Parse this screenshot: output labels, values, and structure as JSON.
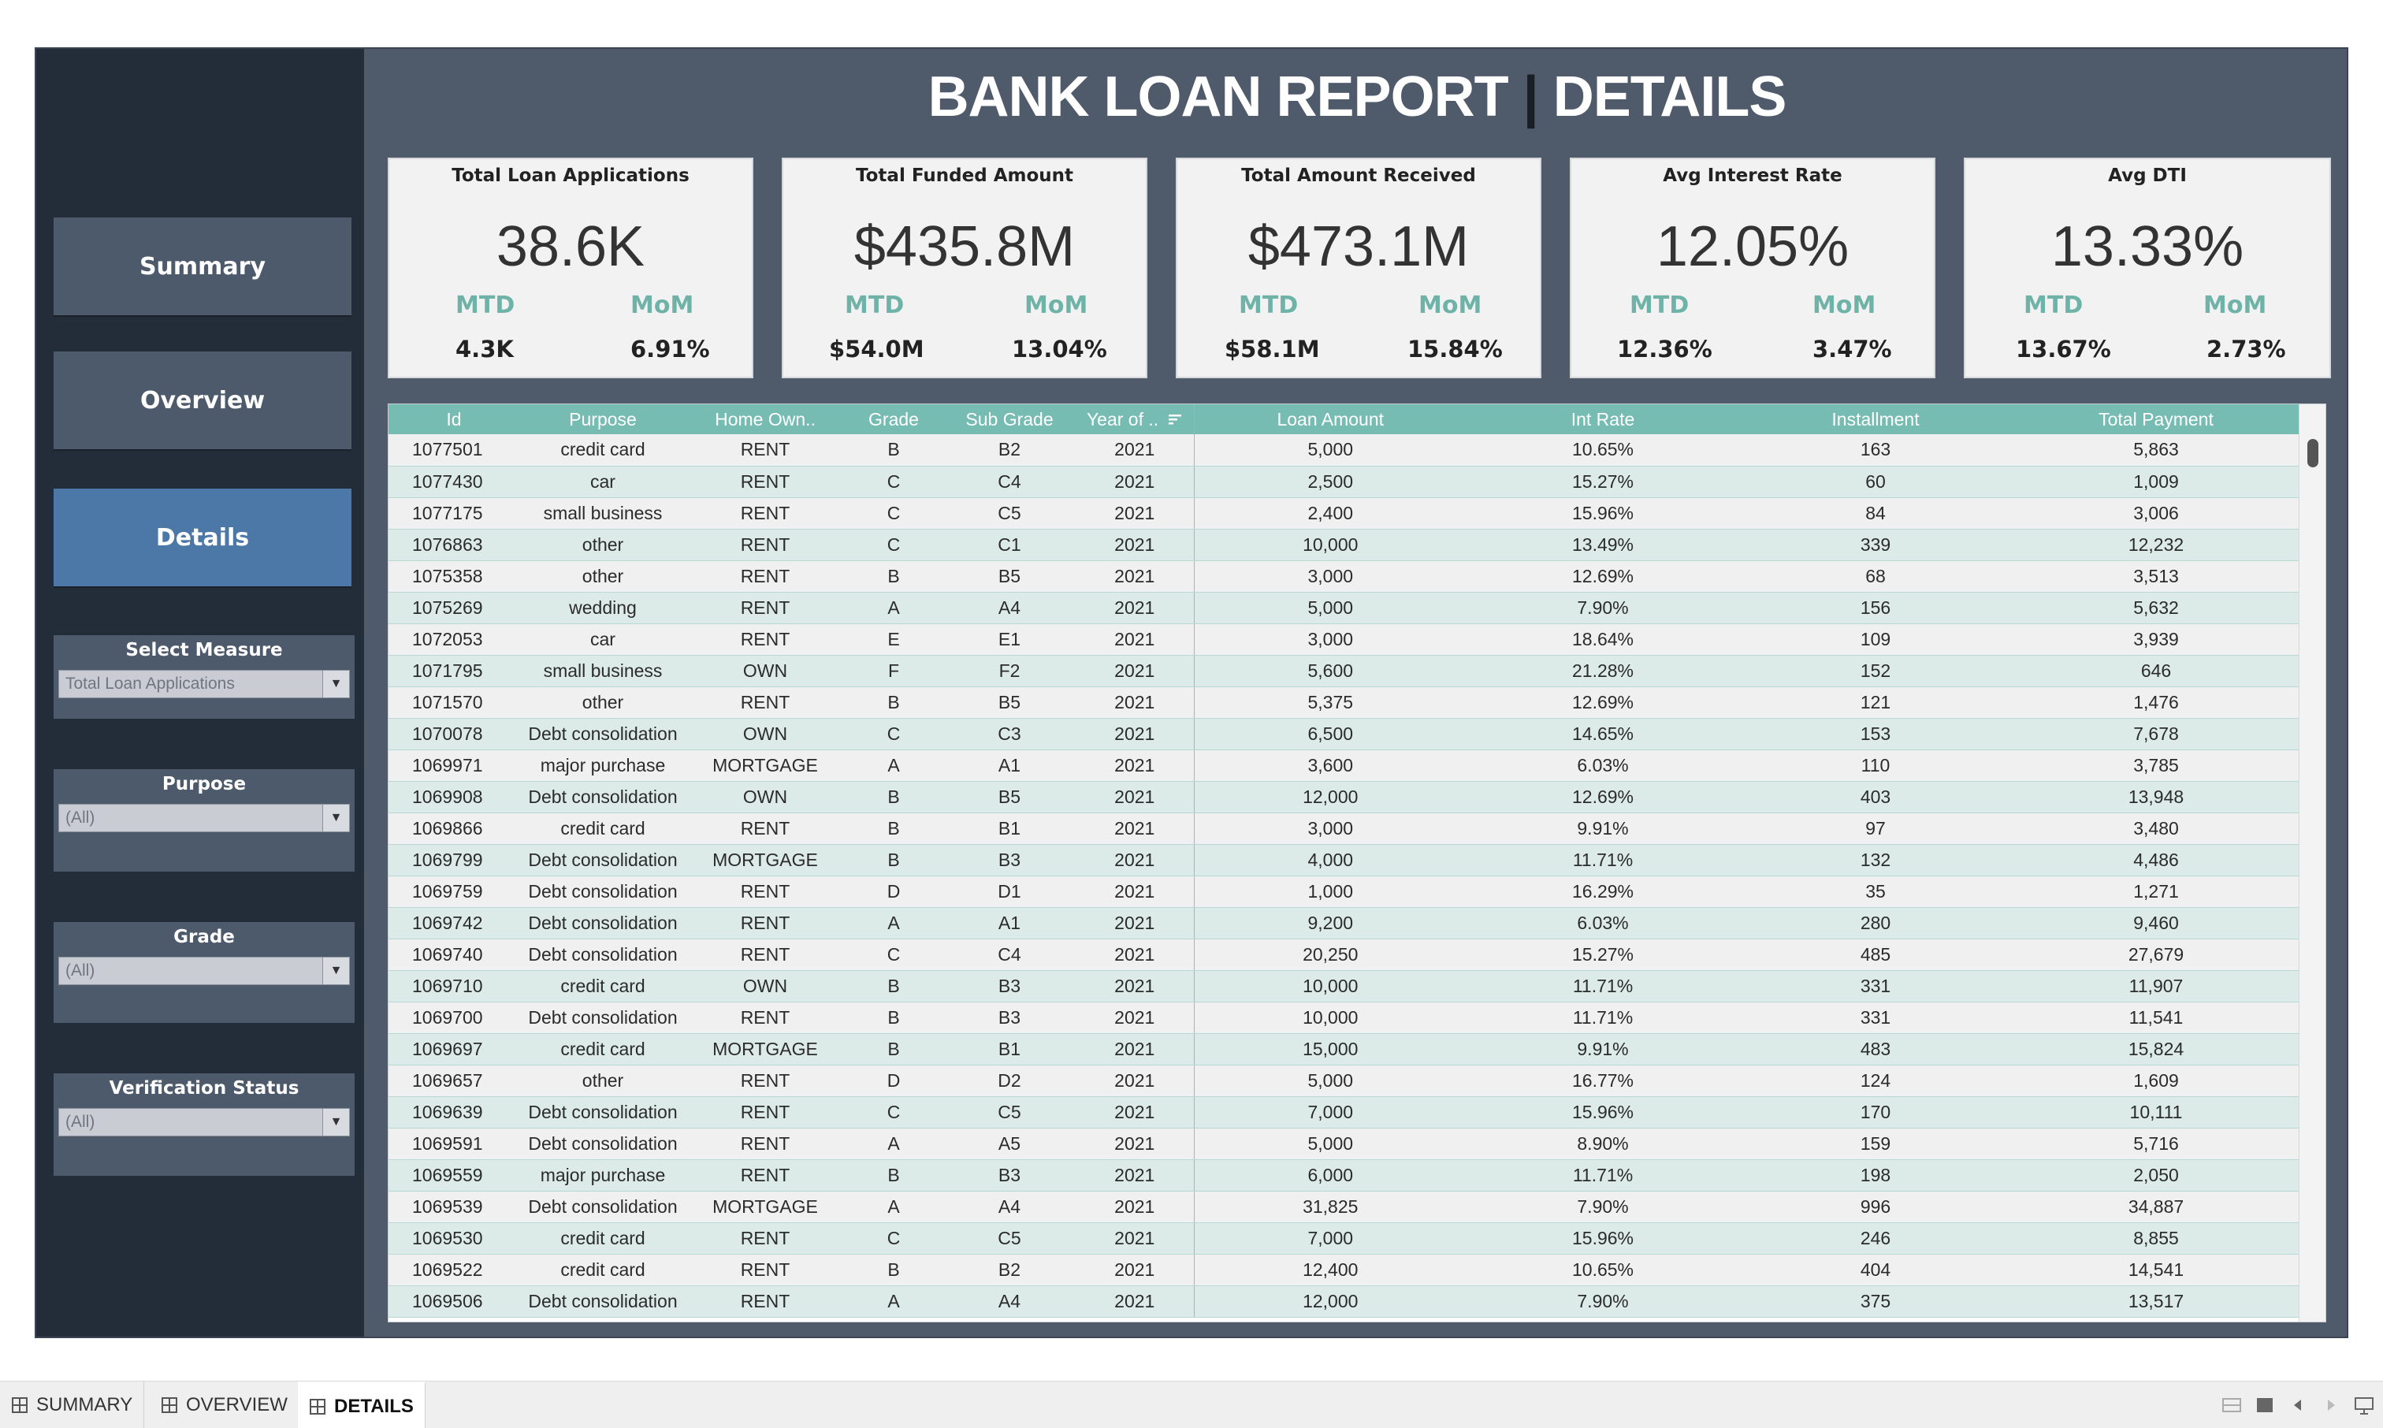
{
  "report": {
    "title_left": "BANK LOAN REPORT",
    "title_separator": "|",
    "title_right": "DETAILS"
  },
  "nav": {
    "summary": "Summary",
    "overview": "Overview",
    "details": "Details",
    "active": "details"
  },
  "filters": {
    "measure": {
      "label": "Select Measure",
      "value": "Total Loan Applications"
    },
    "purpose": {
      "label": "Purpose",
      "value": "(All)"
    },
    "grade": {
      "label": "Grade",
      "value": "(All)"
    },
    "verification": {
      "label": "Verification Status",
      "value": "(All)"
    }
  },
  "kpis": [
    {
      "label": "Total Loan Applications",
      "value": "38.6K",
      "mtd_label": "MTD",
      "mom_label": "MoM",
      "mtd": "4.3K",
      "mom": "6.91%"
    },
    {
      "label": "Total Funded Amount",
      "value": "$435.8M",
      "mtd_label": "MTD",
      "mom_label": "MoM",
      "mtd": "$54.0M",
      "mom": "13.04%"
    },
    {
      "label": "Total Amount Received",
      "value": "$473.1M",
      "mtd_label": "MTD",
      "mom_label": "MoM",
      "mtd": "$58.1M",
      "mom": "15.84%"
    },
    {
      "label": "Avg Interest Rate",
      "value": "12.05%",
      "mtd_label": "MTD",
      "mom_label": "MoM",
      "mtd": "12.36%",
      "mom": "3.47%"
    },
    {
      "label": "Avg DTI",
      "value": "13.33%",
      "mtd_label": "MTD",
      "mom_label": "MoM",
      "mtd": "13.67%",
      "mom": "2.73%"
    }
  ],
  "table": {
    "columns": [
      "Id",
      "Purpose",
      "Home Own..",
      "Grade",
      "Sub Grade",
      "Year of ..",
      "Loan Amount",
      "Int Rate",
      "Installment",
      "Total Payment"
    ],
    "rows": [
      [
        "1077501",
        "credit card",
        "RENT",
        "B",
        "B2",
        "2021",
        "5,000",
        "10.65%",
        "163",
        "5,863"
      ],
      [
        "1077430",
        "car",
        "RENT",
        "C",
        "C4",
        "2021",
        "2,500",
        "15.27%",
        "60",
        "1,009"
      ],
      [
        "1077175",
        "small business",
        "RENT",
        "C",
        "C5",
        "2021",
        "2,400",
        "15.96%",
        "84",
        "3,006"
      ],
      [
        "1076863",
        "other",
        "RENT",
        "C",
        "C1",
        "2021",
        "10,000",
        "13.49%",
        "339",
        "12,232"
      ],
      [
        "1075358",
        "other",
        "RENT",
        "B",
        "B5",
        "2021",
        "3,000",
        "12.69%",
        "68",
        "3,513"
      ],
      [
        "1075269",
        "wedding",
        "RENT",
        "A",
        "A4",
        "2021",
        "5,000",
        "7.90%",
        "156",
        "5,632"
      ],
      [
        "1072053",
        "car",
        "RENT",
        "E",
        "E1",
        "2021",
        "3,000",
        "18.64%",
        "109",
        "3,939"
      ],
      [
        "1071795",
        "small business",
        "OWN",
        "F",
        "F2",
        "2021",
        "5,600",
        "21.28%",
        "152",
        "646"
      ],
      [
        "1071570",
        "other",
        "RENT",
        "B",
        "B5",
        "2021",
        "5,375",
        "12.69%",
        "121",
        "1,476"
      ],
      [
        "1070078",
        "Debt consolidation",
        "OWN",
        "C",
        "C3",
        "2021",
        "6,500",
        "14.65%",
        "153",
        "7,678"
      ],
      [
        "1069971",
        "major purchase",
        "MORTGAGE",
        "A",
        "A1",
        "2021",
        "3,600",
        "6.03%",
        "110",
        "3,785"
      ],
      [
        "1069908",
        "Debt consolidation",
        "OWN",
        "B",
        "B5",
        "2021",
        "12,000",
        "12.69%",
        "403",
        "13,948"
      ],
      [
        "1069866",
        "credit card",
        "RENT",
        "B",
        "B1",
        "2021",
        "3,000",
        "9.91%",
        "97",
        "3,480"
      ],
      [
        "1069799",
        "Debt consolidation",
        "MORTGAGE",
        "B",
        "B3",
        "2021",
        "4,000",
        "11.71%",
        "132",
        "4,486"
      ],
      [
        "1069759",
        "Debt consolidation",
        "RENT",
        "D",
        "D1",
        "2021",
        "1,000",
        "16.29%",
        "35",
        "1,271"
      ],
      [
        "1069742",
        "Debt consolidation",
        "RENT",
        "A",
        "A1",
        "2021",
        "9,200",
        "6.03%",
        "280",
        "9,460"
      ],
      [
        "1069740",
        "Debt consolidation",
        "RENT",
        "C",
        "C4",
        "2021",
        "20,250",
        "15.27%",
        "485",
        "27,679"
      ],
      [
        "1069710",
        "credit card",
        "OWN",
        "B",
        "B3",
        "2021",
        "10,000",
        "11.71%",
        "331",
        "11,907"
      ],
      [
        "1069700",
        "Debt consolidation",
        "RENT",
        "B",
        "B3",
        "2021",
        "10,000",
        "11.71%",
        "331",
        "11,541"
      ],
      [
        "1069697",
        "credit card",
        "MORTGAGE",
        "B",
        "B1",
        "2021",
        "15,000",
        "9.91%",
        "483",
        "15,824"
      ],
      [
        "1069657",
        "other",
        "RENT",
        "D",
        "D2",
        "2021",
        "5,000",
        "16.77%",
        "124",
        "1,609"
      ],
      [
        "1069639",
        "Debt consolidation",
        "RENT",
        "C",
        "C5",
        "2021",
        "7,000",
        "15.96%",
        "170",
        "10,111"
      ],
      [
        "1069591",
        "Debt consolidation",
        "RENT",
        "A",
        "A5",
        "2021",
        "5,000",
        "8.90%",
        "159",
        "5,716"
      ],
      [
        "1069559",
        "major purchase",
        "RENT",
        "B",
        "B3",
        "2021",
        "6,000",
        "11.71%",
        "198",
        "2,050"
      ],
      [
        "1069539",
        "Debt consolidation",
        "MORTGAGE",
        "A",
        "A4",
        "2021",
        "31,825",
        "7.90%",
        "996",
        "34,887"
      ],
      [
        "1069530",
        "credit card",
        "RENT",
        "C",
        "C5",
        "2021",
        "7,000",
        "15.96%",
        "246",
        "8,855"
      ],
      [
        "1069522",
        "credit card",
        "RENT",
        "B",
        "B2",
        "2021",
        "12,400",
        "10.65%",
        "404",
        "14,541"
      ],
      [
        "1069506",
        "Debt consolidation",
        "RENT",
        "A",
        "A4",
        "2021",
        "12,000",
        "7.90%",
        "375",
        "13,517"
      ]
    ]
  },
  "sheet_tabs": [
    {
      "label": "SUMMARY",
      "active": false
    },
    {
      "label": "OVERVIEW",
      "active": false
    },
    {
      "label": "DETAILS",
      "active": true
    }
  ],
  "colors": {
    "dashboard_bg": "#4f5a6b",
    "sidebar_bg": "#232d3a",
    "active_nav": "#4c78a8",
    "header_teal": "#76bcb3",
    "kpi_accent": "#6fb3a8"
  }
}
